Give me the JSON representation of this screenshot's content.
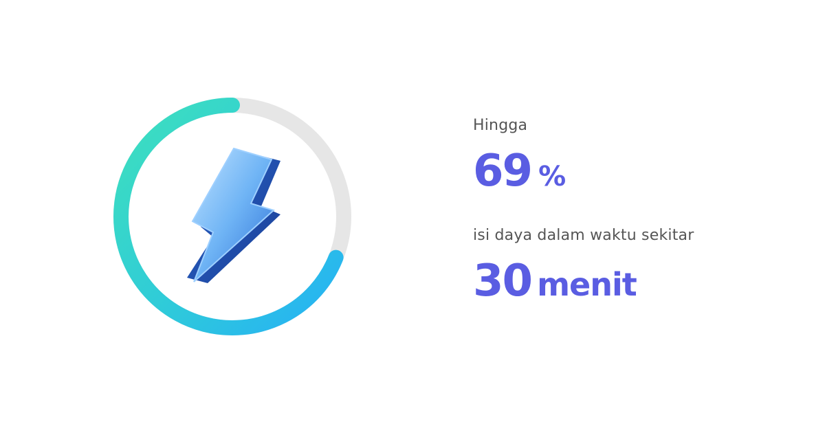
{
  "stat": {
    "prefix": "Hingga",
    "value": 69,
    "unit": "%",
    "caption": "isi daya dalam waktu sekitar",
    "time_value": 30,
    "time_unit": "menit"
  }
}
